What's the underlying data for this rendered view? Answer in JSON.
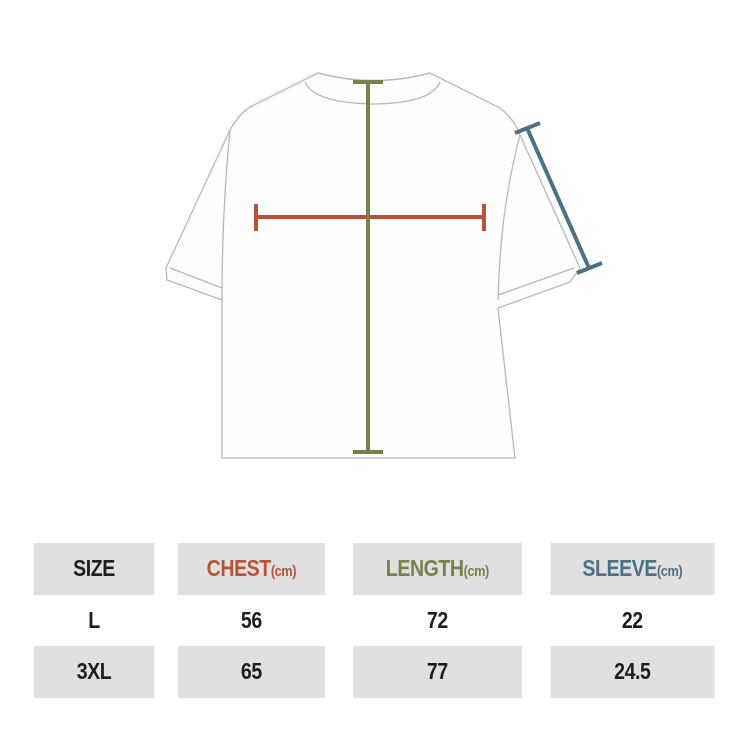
{
  "colors": {
    "chest": "#b5543a",
    "length": "#7b7f4b",
    "sleeve": "#4c7185",
    "outline": "#b8b8b8"
  },
  "table": {
    "headers": [
      {
        "label": "SIZE",
        "unit": ""
      },
      {
        "label": "CHEST",
        "unit": "(cm)"
      },
      {
        "label": "LENGTH",
        "unit": "(cm)"
      },
      {
        "label": "SLEEVE",
        "unit": "(cm)"
      }
    ],
    "rows": [
      [
        "L",
        "56",
        "72",
        "22"
      ],
      [
        "3XL",
        "65",
        "77",
        "24.5"
      ]
    ]
  }
}
